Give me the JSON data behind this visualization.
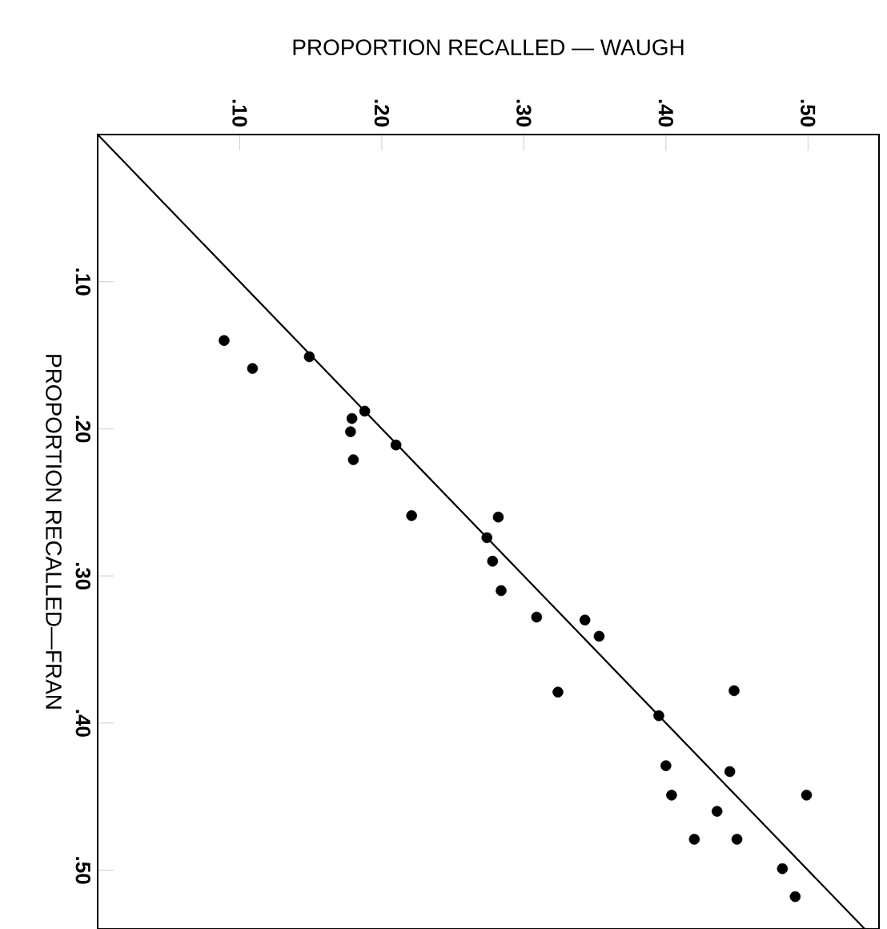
{
  "chart_data": {
    "type": "scatter",
    "xlabel": "PROPORTION    RECALLED — WAUGH",
    "ylabel": "PROPORTION    RECALLED—FRAN",
    "xlim": [
      0,
      0.55
    ],
    "ylim": [
      0.54,
      0
    ],
    "xticks": [
      {
        "value": 0.1,
        "label": ".10"
      },
      {
        "value": 0.2,
        "label": ".20"
      },
      {
        "value": 0.3,
        "label": ".30"
      },
      {
        "value": 0.4,
        "label": ".40"
      },
      {
        "value": 0.5,
        "label": ".50"
      }
    ],
    "yticks": [
      {
        "value": 0.1,
        "label": ".10"
      },
      {
        "value": 0.2,
        "label": ".20"
      },
      {
        "value": 0.3,
        "label": ".30"
      },
      {
        "value": 0.4,
        "label": ".40"
      },
      {
        "value": 0.5,
        "label": ".50"
      }
    ],
    "grid": false,
    "marker": "circle",
    "series": [
      {
        "color": "#000000",
        "x": [
          0.089,
          0.109,
          0.149,
          0.179,
          0.178,
          0.188,
          0.18,
          0.21,
          0.221,
          0.282,
          0.274,
          0.278,
          0.284,
          0.309,
          0.343,
          0.353,
          0.324,
          0.448,
          0.395,
          0.4,
          0.404,
          0.445,
          0.436,
          0.499,
          0.42,
          0.45,
          0.482,
          0.491
        ],
        "values": [
          0.14,
          0.159,
          0.151,
          0.193,
          0.202,
          0.188,
          0.221,
          0.211,
          0.259,
          0.26,
          0.274,
          0.29,
          0.31,
          0.328,
          0.33,
          0.341,
          0.379,
          0.378,
          0.395,
          0.429,
          0.449,
          0.433,
          0.46,
          0.449,
          0.479,
          0.479,
          0.499,
          0.518
        ]
      },
      {
        "type": "line",
        "color": "#000000",
        "x": [
          0,
          0.54
        ],
        "values": [
          0,
          0.54
        ],
        "line_style": "solid",
        "marker": "none"
      }
    ]
  }
}
